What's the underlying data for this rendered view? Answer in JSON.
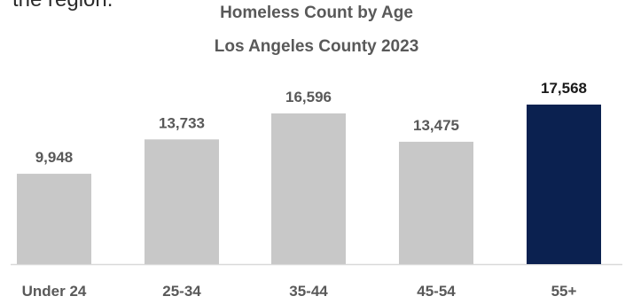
{
  "page": {
    "clipped_text": "the region."
  },
  "chart_data": {
    "type": "bar",
    "title": "Homeless Count by Age",
    "subtitle": "Los Angeles County 2023",
    "categories": [
      "Under 24",
      "25-34",
      "35-44",
      "45-54",
      "55+"
    ],
    "values": [
      9948,
      13733,
      16596,
      13475,
      17568
    ],
    "value_labels": [
      "9,948",
      "13,733",
      "16,596",
      "13,475",
      "17,568"
    ],
    "highlight_index": 4,
    "xlabel": "",
    "ylabel": "",
    "ylim": [
      0,
      17568
    ],
    "grid": false,
    "legend": "none",
    "colors": {
      "bar": "#c8c8c8",
      "highlight": "#0b2150",
      "label": "#595959",
      "highlight_label": "#1a1a1a",
      "axis": "#d9d9d9"
    }
  }
}
